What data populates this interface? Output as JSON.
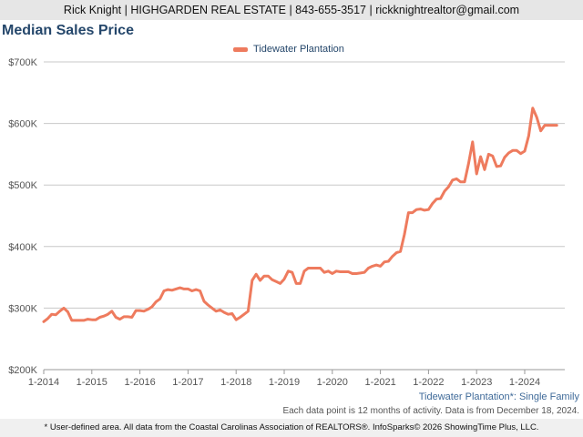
{
  "header": {
    "contact_line": "Rick Knight | HIGHGARDEN REAL ESTATE | 843-655-3517 | rickknightrealtor@gmail.com"
  },
  "chart_data": {
    "type": "line",
    "title": "Median Sales Price",
    "legend_position": "top-center",
    "grid": true,
    "series": [
      {
        "name": "Tidewater Plantation",
        "color": "#ee7b5e",
        "points": [
          [
            "2014-01",
            278000
          ],
          [
            "2014-02",
            283000
          ],
          [
            "2014-03",
            290000
          ],
          [
            "2014-04",
            289000
          ],
          [
            "2014-05",
            295000
          ],
          [
            "2014-06",
            300000
          ],
          [
            "2014-07",
            294000
          ],
          [
            "2014-08",
            280000
          ],
          [
            "2014-09",
            280000
          ],
          [
            "2014-10",
            280000
          ],
          [
            "2014-11",
            280000
          ],
          [
            "2014-12",
            282000
          ],
          [
            "2015-01",
            281000
          ],
          [
            "2015-02",
            281000
          ],
          [
            "2015-03",
            285000
          ],
          [
            "2015-04",
            287000
          ],
          [
            "2015-05",
            290000
          ],
          [
            "2015-06",
            295000
          ],
          [
            "2015-07",
            285000
          ],
          [
            "2015-08",
            282000
          ],
          [
            "2015-09",
            286000
          ],
          [
            "2015-10",
            286000
          ],
          [
            "2015-11",
            285000
          ],
          [
            "2015-12",
            296000
          ],
          [
            "2016-01",
            296000
          ],
          [
            "2016-02",
            295000
          ],
          [
            "2016-03",
            298000
          ],
          [
            "2016-04",
            302000
          ],
          [
            "2016-05",
            310000
          ],
          [
            "2016-06",
            315000
          ],
          [
            "2016-07",
            328000
          ],
          [
            "2016-08",
            330000
          ],
          [
            "2016-09",
            329000
          ],
          [
            "2016-10",
            331000
          ],
          [
            "2016-11",
            333000
          ],
          [
            "2016-12",
            331000
          ],
          [
            "2017-01",
            331000
          ],
          [
            "2017-02",
            328000
          ],
          [
            "2017-03",
            330000
          ],
          [
            "2017-04",
            328000
          ],
          [
            "2017-05",
            311000
          ],
          [
            "2017-06",
            305000
          ],
          [
            "2017-07",
            300000
          ],
          [
            "2017-08",
            295000
          ],
          [
            "2017-09",
            297000
          ],
          [
            "2017-10",
            293000
          ],
          [
            "2017-11",
            290000
          ],
          [
            "2017-12",
            291000
          ],
          [
            "2018-01",
            281000
          ],
          [
            "2018-02",
            285000
          ],
          [
            "2018-03",
            290000
          ],
          [
            "2018-04",
            295000
          ],
          [
            "2018-05",
            345000
          ],
          [
            "2018-06",
            355000
          ],
          [
            "2018-07",
            345000
          ],
          [
            "2018-08",
            352000
          ],
          [
            "2018-09",
            352000
          ],
          [
            "2018-10",
            346000
          ],
          [
            "2018-11",
            343000
          ],
          [
            "2018-12",
            340000
          ],
          [
            "2019-01",
            347000
          ],
          [
            "2019-02",
            360000
          ],
          [
            "2019-03",
            358000
          ],
          [
            "2019-04",
            340000
          ],
          [
            "2019-05",
            340000
          ],
          [
            "2019-06",
            360000
          ],
          [
            "2019-07",
            365000
          ],
          [
            "2019-08",
            365000
          ],
          [
            "2019-09",
            365000
          ],
          [
            "2019-10",
            365000
          ],
          [
            "2019-11",
            358000
          ],
          [
            "2019-12",
            360000
          ],
          [
            "2020-01",
            356000
          ],
          [
            "2020-02",
            360000
          ],
          [
            "2020-03",
            359000
          ],
          [
            "2020-04",
            359000
          ],
          [
            "2020-05",
            359000
          ],
          [
            "2020-06",
            356000
          ],
          [
            "2020-07",
            356000
          ],
          [
            "2020-08",
            357000
          ],
          [
            "2020-09",
            358000
          ],
          [
            "2020-10",
            365000
          ],
          [
            "2020-11",
            368000
          ],
          [
            "2020-12",
            370000
          ],
          [
            "2021-01",
            368000
          ],
          [
            "2021-02",
            375000
          ],
          [
            "2021-03",
            376000
          ],
          [
            "2021-04",
            384000
          ],
          [
            "2021-05",
            390000
          ],
          [
            "2021-06",
            392000
          ],
          [
            "2021-07",
            420000
          ],
          [
            "2021-08",
            455000
          ],
          [
            "2021-09",
            455000
          ],
          [
            "2021-10",
            460000
          ],
          [
            "2021-11",
            461000
          ],
          [
            "2021-12",
            459000
          ],
          [
            "2022-01",
            460000
          ],
          [
            "2022-02",
            470000
          ],
          [
            "2022-03",
            477000
          ],
          [
            "2022-04",
            478000
          ],
          [
            "2022-05",
            490000
          ],
          [
            "2022-06",
            497000
          ],
          [
            "2022-07",
            508000
          ],
          [
            "2022-08",
            510000
          ],
          [
            "2022-09",
            505000
          ],
          [
            "2022-10",
            505000
          ],
          [
            "2022-11",
            535000
          ],
          [
            "2022-12",
            570000
          ],
          [
            "2023-01",
            518000
          ],
          [
            "2023-02",
            546000
          ],
          [
            "2023-03",
            525000
          ],
          [
            "2023-04",
            550000
          ],
          [
            "2023-05",
            547000
          ],
          [
            "2023-06",
            530000
          ],
          [
            "2023-07",
            531000
          ],
          [
            "2023-08",
            545000
          ],
          [
            "2023-09",
            552000
          ],
          [
            "2023-10",
            556000
          ],
          [
            "2023-11",
            556000
          ],
          [
            "2023-12",
            551000
          ],
          [
            "2024-01",
            555000
          ],
          [
            "2024-02",
            580000
          ],
          [
            "2024-03",
            625000
          ],
          [
            "2024-04",
            610000
          ],
          [
            "2024-05",
            588000
          ],
          [
            "2024-06",
            597000
          ],
          [
            "2024-07",
            597000
          ],
          [
            "2024-08",
            597000
          ],
          [
            "2024-09",
            597000
          ]
        ]
      }
    ],
    "x_ticks": [
      "1-2014",
      "1-2015",
      "1-2016",
      "1-2017",
      "1-2018",
      "1-2019",
      "1-2020",
      "1-2021",
      "1-2022",
      "1-2023",
      "1-2024"
    ],
    "xlim": [
      "2014-01",
      "2024-11"
    ],
    "y_ticks": [
      200000,
      300000,
      400000,
      500000,
      600000,
      700000
    ],
    "y_tick_labels": [
      "$200K",
      "$300K",
      "$400K",
      "$500K",
      "$600K",
      "$700K"
    ],
    "ylim": [
      200000,
      700000
    ]
  },
  "captions": {
    "area_note": "Tidewater Plantation*: Single Family",
    "data_note": "Each data point is 12 months of activity. Data is from December 18, 2024.",
    "footer": "* User-defined area. All data from the Coastal Carolinas Association of REALTORS®. InfoSparks© 2026 ShowingTime Plus, LLC."
  }
}
